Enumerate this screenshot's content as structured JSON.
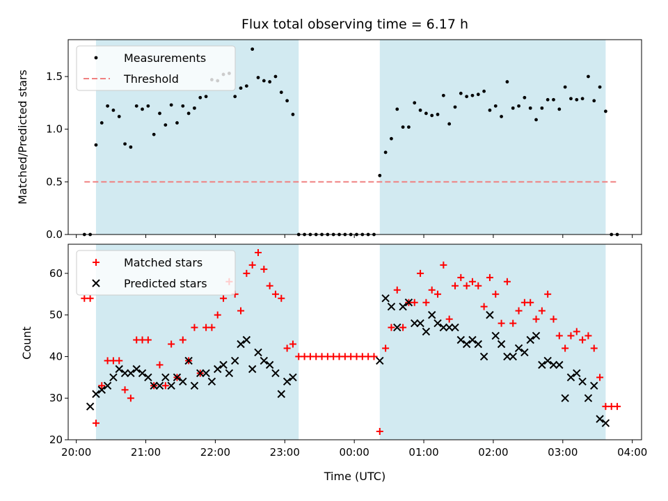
{
  "chart_data": [
    {
      "type": "scatter",
      "title": "Flux total observing time = 6.17 h",
      "xlabel": "",
      "ylabel": "Matched/Predicted stars",
      "xlim": [
        "19:53",
        "04:08"
      ],
      "ylim": [
        0,
        1.85
      ],
      "yticks": [
        "0.0",
        "0.5",
        "1.0",
        "1.5"
      ],
      "grid": false,
      "legend": "top-left",
      "observing_windows": [
        [
          "20:17",
          "23:12"
        ],
        [
          "00:22",
          "03:37"
        ]
      ],
      "window_color": "#add8e6",
      "series": [
        {
          "name": "Measurements",
          "marker": "dot",
          "color": "#000000",
          "x": [
            "20:07",
            "20:12",
            "20:17",
            "20:22",
            "20:27",
            "20:32",
            "20:37",
            "20:42",
            "20:47",
            "20:52",
            "20:57",
            "21:02",
            "21:07",
            "21:12",
            "21:17",
            "21:22",
            "21:27",
            "21:32",
            "21:37",
            "21:42",
            "21:47",
            "21:52",
            "21:57",
            "22:02",
            "22:07",
            "22:12",
            "22:17",
            "22:22",
            "22:27",
            "22:32",
            "22:37",
            "22:42",
            "22:47",
            "22:52",
            "22:57",
            "23:02",
            "23:07",
            "23:12",
            "23:17",
            "23:22",
            "23:27",
            "23:32",
            "23:37",
            "23:42",
            "23:47",
            "23:52",
            "23:57",
            "00:02",
            "00:07",
            "00:12",
            "00:17",
            "00:22",
            "00:27",
            "00:32",
            "00:37",
            "00:42",
            "00:47",
            "00:52",
            "00:57",
            "01:02",
            "01:07",
            "01:12",
            "01:17",
            "01:22",
            "01:27",
            "01:32",
            "01:37",
            "01:42",
            "01:47",
            "01:52",
            "01:57",
            "02:02",
            "02:07",
            "02:12",
            "02:17",
            "02:22",
            "02:27",
            "02:32",
            "02:37",
            "02:42",
            "02:47",
            "02:52",
            "02:57",
            "03:02",
            "03:07",
            "03:12",
            "03:17",
            "03:22",
            "03:27",
            "03:32",
            "03:37",
            "03:42",
            "03:47"
          ],
          "y": [
            0,
            0,
            0.85,
            1.06,
            1.22,
            1.18,
            1.12,
            0.86,
            0.83,
            1.22,
            1.19,
            1.22,
            0.95,
            1.15,
            1.04,
            1.23,
            1.06,
            1.22,
            1.15,
            1.2,
            1.3,
            1.31,
            1.47,
            1.46,
            1.52,
            1.53,
            1.31,
            1.39,
            1.41,
            1.76,
            1.49,
            1.46,
            1.45,
            1.5,
            1.35,
            1.27,
            1.14,
            0,
            0,
            0,
            0,
            0,
            0,
            0,
            0,
            0,
            0,
            0,
            0,
            0,
            0,
            0.56,
            0.78,
            0.91,
            1.19,
            1.02,
            1.02,
            1.25,
            1.18,
            1.15,
            1.13,
            1.14,
            1.32,
            1.05,
            1.21,
            1.34,
            1.31,
            1.32,
            1.33,
            1.36,
            1.18,
            1.22,
            1.12,
            1.45,
            1.2,
            1.22,
            1.3,
            1.2,
            1.09,
            1.2,
            1.28,
            1.28,
            1.19,
            1.4,
            1.29,
            1.28,
            1.29,
            1.5,
            1.27,
            1.4,
            1.17,
            0,
            0
          ]
        },
        {
          "name": "Threshold",
          "style": "dashed",
          "color": "#f08080",
          "x": [
            "20:07",
            "03:47"
          ],
          "y": [
            0.5,
            0.5
          ]
        }
      ]
    },
    {
      "type": "scatter",
      "title": "",
      "xlabel": "Time (UTC)",
      "ylabel": "Count",
      "xlim": [
        "19:53",
        "04:08"
      ],
      "ylim": [
        20,
        67
      ],
      "yticks": [
        "20",
        "30",
        "40",
        "50",
        "60"
      ],
      "xticks": [
        "20:00",
        "21:00",
        "22:00",
        "23:00",
        "00:00",
        "01:00",
        "02:00",
        "03:00",
        "04:00"
      ],
      "grid": false,
      "legend": "top-left",
      "observing_windows": [
        [
          "20:17",
          "23:12"
        ],
        [
          "00:22",
          "03:37"
        ]
      ],
      "window_color": "#add8e6",
      "series": [
        {
          "name": "Matched stars",
          "marker": "plus",
          "color": "#ff0000",
          "x": [
            "20:07",
            "20:12",
            "20:17",
            "20:22",
            "20:27",
            "20:32",
            "20:37",
            "20:42",
            "20:47",
            "20:52",
            "20:57",
            "21:02",
            "21:07",
            "21:12",
            "21:17",
            "21:22",
            "21:27",
            "21:32",
            "21:37",
            "21:42",
            "21:47",
            "21:52",
            "21:57",
            "22:02",
            "22:07",
            "22:12",
            "22:17",
            "22:22",
            "22:27",
            "22:32",
            "22:37",
            "22:42",
            "22:47",
            "22:52",
            "22:57",
            "23:02",
            "23:07",
            "23:12",
            "23:17",
            "23:22",
            "23:27",
            "23:32",
            "23:37",
            "23:42",
            "23:47",
            "23:52",
            "23:57",
            "00:02",
            "00:07",
            "00:12",
            "00:17",
            "00:22",
            "00:27",
            "00:32",
            "00:37",
            "00:42",
            "00:47",
            "00:52",
            "00:57",
            "01:02",
            "01:07",
            "01:12",
            "01:17",
            "01:22",
            "01:27",
            "01:32",
            "01:37",
            "01:42",
            "01:47",
            "01:52",
            "01:57",
            "02:02",
            "02:07",
            "02:12",
            "02:17",
            "02:22",
            "02:27",
            "02:32",
            "02:37",
            "02:42",
            "02:47",
            "02:52",
            "02:57",
            "03:02",
            "03:07",
            "03:12",
            "03:17",
            "03:22",
            "03:27",
            "03:32",
            "03:37",
            "03:42",
            "03:47"
          ],
          "y": [
            54,
            54,
            24,
            33,
            39,
            39,
            39,
            32,
            30,
            44,
            44,
            44,
            33,
            38,
            33,
            43,
            35,
            44,
            39,
            47,
            36,
            47,
            47,
            50,
            54,
            58,
            55,
            51,
            60,
            62,
            65,
            61,
            57,
            55,
            54,
            42,
            43,
            40,
            40,
            40,
            40,
            40,
            40,
            40,
            40,
            40,
            40,
            40,
            40,
            40,
            40,
            22,
            42,
            47,
            56,
            47,
            53,
            53,
            60,
            53,
            56,
            55,
            62,
            49,
            57,
            59,
            57,
            58,
            57,
            52,
            59,
            55,
            48,
            58,
            48,
            51,
            53,
            53,
            49,
            51,
            55,
            49,
            45,
            42,
            45,
            46,
            44,
            45,
            42,
            35,
            28,
            28,
            28
          ]
        },
        {
          "name": "Predicted stars",
          "marker": "x",
          "color": "#000000",
          "x": [
            "20:12",
            "20:17",
            "20:22",
            "20:27",
            "20:32",
            "20:37",
            "20:42",
            "20:47",
            "20:52",
            "20:57",
            "21:02",
            "21:07",
            "21:12",
            "21:17",
            "21:22",
            "21:27",
            "21:32",
            "21:37",
            "21:42",
            "21:47",
            "21:52",
            "21:57",
            "22:02",
            "22:07",
            "22:12",
            "22:17",
            "22:22",
            "22:27",
            "22:32",
            "22:37",
            "22:42",
            "22:47",
            "22:52",
            "22:57",
            "23:02",
            "23:07",
            "00:22",
            "00:27",
            "00:32",
            "00:37",
            "00:42",
            "00:47",
            "00:52",
            "00:57",
            "01:02",
            "01:07",
            "01:12",
            "01:17",
            "01:22",
            "01:27",
            "01:32",
            "01:37",
            "01:42",
            "01:47",
            "01:52",
            "01:57",
            "02:02",
            "02:07",
            "02:12",
            "02:17",
            "02:22",
            "02:27",
            "02:32",
            "02:37",
            "02:42",
            "02:47",
            "02:52",
            "02:57",
            "03:02",
            "03:07",
            "03:12",
            "03:17",
            "03:22",
            "03:27",
            "03:32",
            "03:37"
          ],
          "y": [
            28,
            31,
            32,
            33,
            35,
            37,
            36,
            36,
            37,
            36,
            35,
            33,
            33,
            35,
            33,
            35,
            34,
            39,
            33,
            36,
            36,
            34,
            37,
            38,
            36,
            39,
            43,
            44,
            37,
            41,
            39,
            38,
            36,
            31,
            34,
            35,
            39,
            54,
            52,
            47,
            52,
            53,
            48,
            48,
            46,
            50,
            48,
            47,
            47,
            47,
            44,
            43,
            44,
            43,
            40,
            50,
            45,
            43,
            40,
            40,
            42,
            41,
            44,
            45,
            38,
            39,
            38,
            38,
            30,
            35,
            36,
            34,
            30,
            33,
            25,
            24
          ]
        }
      ]
    }
  ]
}
